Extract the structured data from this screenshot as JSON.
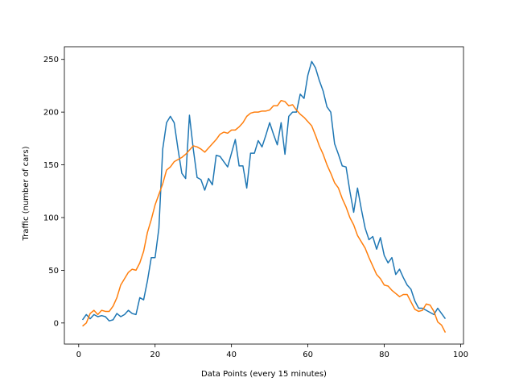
{
  "chart_data": {
    "type": "line",
    "title": "",
    "xlabel": "Data Points (every 15 minutes)",
    "ylabel": "Traffic (number of cars)",
    "xlim": [
      -3.75,
      100.75
    ],
    "ylim": [
      -20,
      262
    ],
    "x_ticks": [
      0,
      20,
      40,
      60,
      80,
      100
    ],
    "y_ticks": [
      0,
      50,
      100,
      150,
      200,
      250
    ],
    "grid": false,
    "legend": "none",
    "x": [
      1,
      2,
      3,
      4,
      5,
      6,
      7,
      8,
      9,
      10,
      11,
      12,
      13,
      14,
      15,
      16,
      17,
      18,
      19,
      20,
      21,
      22,
      23,
      24,
      25,
      26,
      27,
      28,
      29,
      30,
      31,
      32,
      33,
      34,
      35,
      36,
      37,
      38,
      39,
      40,
      41,
      42,
      43,
      44,
      45,
      46,
      47,
      48,
      49,
      50,
      51,
      52,
      53,
      54,
      55,
      56,
      57,
      58,
      59,
      60,
      61,
      62,
      63,
      64,
      65,
      66,
      67,
      68,
      69,
      70,
      71,
      72,
      73,
      74,
      75,
      76,
      77,
      78,
      79,
      80,
      81,
      82,
      83,
      84,
      85,
      86,
      87,
      88,
      89,
      90,
      91,
      92,
      93,
      94,
      95,
      96
    ],
    "series": [
      {
        "color": "#1f77b4",
        "values": [
          3,
          8,
          4,
          8,
          6,
          7,
          6,
          2,
          3,
          9,
          6,
          8,
          12,
          9,
          8,
          24,
          22,
          40,
          62,
          62,
          90,
          165,
          190,
          196,
          190,
          165,
          142,
          137,
          197,
          165,
          138,
          136,
          126,
          137,
          131,
          159,
          158,
          153,
          148,
          161,
          174,
          149,
          149,
          128,
          161,
          161,
          173,
          167,
          178,
          190,
          179,
          169,
          190,
          160,
          196,
          200,
          200,
          217,
          213,
          235,
          248,
          242,
          230,
          220,
          205,
          200,
          170,
          160,
          149,
          148,
          125,
          105,
          128,
          108,
          90,
          79,
          82,
          70,
          81,
          64,
          57,
          62,
          46,
          51,
          43,
          36,
          32,
          21,
          14,
          14,
          12,
          10,
          8,
          14,
          9,
          4
        ]
      },
      {
        "color": "#ff7f0e",
        "values": [
          -3,
          0,
          9,
          12,
          8,
          12,
          11,
          11,
          16,
          24,
          36,
          42,
          48,
          51,
          50,
          57,
          68,
          86,
          98,
          112,
          122,
          132,
          145,
          148,
          153,
          155,
          157,
          160,
          164,
          168,
          167,
          165,
          162,
          166,
          170,
          174,
          179,
          181,
          180,
          183,
          183,
          186,
          190,
          196,
          199,
          200,
          200,
          201,
          201,
          202,
          206,
          206,
          211,
          210,
          206,
          207,
          202,
          198,
          195,
          191,
          187,
          178,
          168,
          160,
          150,
          142,
          133,
          128,
          118,
          110,
          100,
          93,
          83,
          77,
          71,
          62,
          54,
          46,
          42,
          36,
          35,
          31,
          28,
          25,
          27,
          27,
          20,
          13,
          11,
          12,
          18,
          17,
          11,
          1,
          -2,
          -9
        ]
      }
    ]
  }
}
